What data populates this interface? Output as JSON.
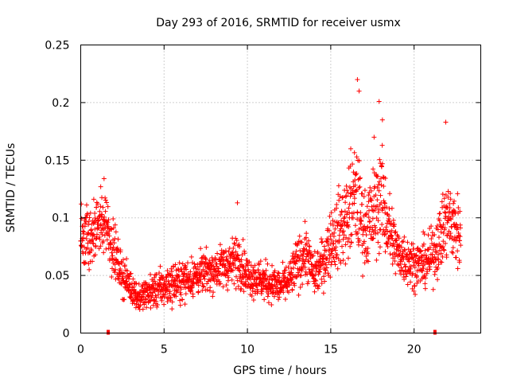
{
  "chart_data": {
    "type": "scatter",
    "title": "Day 293 of 2016, SRMTID for receiver usmx",
    "xlabel": "GPS time / hours",
    "ylabel": "SRMTID / TECUs",
    "xlim": [
      0,
      24
    ],
    "ylim": [
      0,
      0.25
    ],
    "xticks": [
      0,
      5,
      10,
      15,
      20
    ],
    "xtick_labels": [
      "0",
      "5",
      "10",
      "15",
      "20"
    ],
    "yticks": [
      0,
      0.05,
      0.1,
      0.15,
      0.2,
      0.25
    ],
    "ytick_labels": [
      "0",
      "0.05",
      "0.1",
      "0.15",
      "0.2",
      "0.25"
    ],
    "grid": true,
    "marker": "+",
    "series": [
      {
        "name": "SRMTID",
        "color": "#ff0000",
        "points_note": "dense scatter of approx. 2000 samples (every 30 s) from 0 to ~22.8 h",
        "profile": {
          "x": [
            0.0,
            0.5,
            1.0,
            1.5,
            2.0,
            2.5,
            3.0,
            3.5,
            4.0,
            5.0,
            6.0,
            7.0,
            8.0,
            9.0,
            9.5,
            10.0,
            11.0,
            12.0,
            12.5,
            13.0,
            13.5,
            14.0,
            14.5,
            15.0,
            15.5,
            16.0,
            16.5,
            17.0,
            17.5,
            18.0,
            18.5,
            19.0,
            19.5,
            20.0,
            20.5,
            21.0,
            21.5,
            22.0,
            22.5,
            22.8
          ],
          "y": [
            0.085,
            0.08,
            0.09,
            0.1,
            0.07,
            0.05,
            0.04,
            0.03,
            0.035,
            0.04,
            0.045,
            0.05,
            0.055,
            0.06,
            0.065,
            0.05,
            0.045,
            0.04,
            0.045,
            0.06,
            0.07,
            0.05,
            0.06,
            0.08,
            0.09,
            0.1,
            0.12,
            0.09,
            0.1,
            0.12,
            0.09,
            0.07,
            0.065,
            0.06,
            0.06,
            0.065,
            0.08,
            0.1,
            0.09,
            0.085
          ],
          "spread": [
            0.025,
            0.025,
            0.025,
            0.025,
            0.02,
            0.015,
            0.012,
            0.01,
            0.012,
            0.015,
            0.015,
            0.015,
            0.015,
            0.018,
            0.02,
            0.015,
            0.015,
            0.013,
            0.015,
            0.02,
            0.02,
            0.015,
            0.02,
            0.025,
            0.03,
            0.035,
            0.04,
            0.03,
            0.035,
            0.04,
            0.03,
            0.02,
            0.02,
            0.018,
            0.018,
            0.02,
            0.025,
            0.03,
            0.03,
            0.025
          ]
        },
        "notable_points": [
          {
            "x": 16.6,
            "y": 0.22
          },
          {
            "x": 16.7,
            "y": 0.21
          },
          {
            "x": 17.9,
            "y": 0.201
          },
          {
            "x": 18.1,
            "y": 0.185
          },
          {
            "x": 21.9,
            "y": 0.183
          },
          {
            "x": 16.2,
            "y": 0.16
          },
          {
            "x": 17.6,
            "y": 0.17
          },
          {
            "x": 9.4,
            "y": 0.113
          },
          {
            "x": 1.4,
            "y": 0.134
          },
          {
            "x": 1.2,
            "y": 0.127
          }
        ]
      },
      {
        "name": "gap markers",
        "color": "#ff0000",
        "marker": "square",
        "points": [
          {
            "x": 1.65,
            "y": 0
          },
          {
            "x": 21.25,
            "y": 0
          }
        ]
      }
    ]
  }
}
